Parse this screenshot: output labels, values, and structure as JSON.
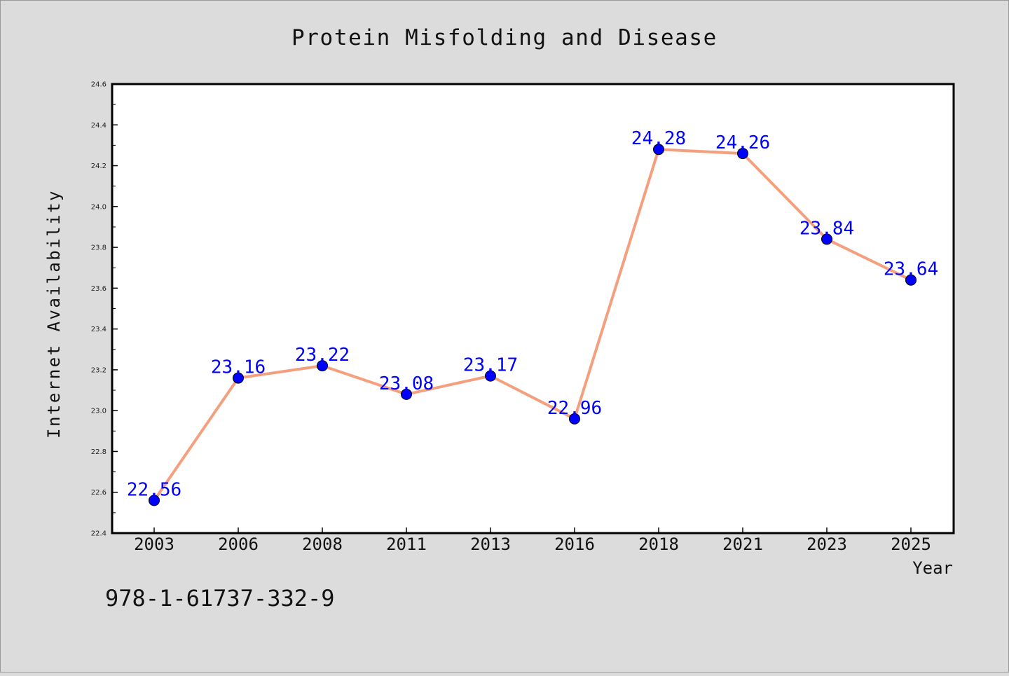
{
  "chart_data": {
    "type": "line",
    "title": "Protein Misfolding and Disease",
    "xlabel": "Year",
    "ylabel": "Internet Availability",
    "categories": [
      "2003",
      "2006",
      "2008",
      "2011",
      "2013",
      "2016",
      "2018",
      "2021",
      "2023",
      "2025"
    ],
    "series": [
      {
        "values": [
          22.56,
          23.16,
          23.22,
          23.08,
          23.17,
          22.96,
          24.28,
          24.26,
          23.84,
          23.64
        ],
        "labels": [
          "22.56",
          "23.16",
          "23.22",
          "23.08",
          "23.17",
          "22.96",
          "24.28",
          "24.26",
          "23.84",
          "23.64"
        ]
      }
    ],
    "ylim": [
      22.4,
      24.6
    ],
    "yticks": [
      "22.4",
      "22.6",
      "22.8",
      "23.0",
      "23.2",
      "23.4",
      "23.6",
      "23.8",
      "24.0",
      "24.2",
      "24.4",
      "24.6"
    ],
    "grid": false,
    "colors": {
      "line": "#f4a07f",
      "marker": "#0000ff",
      "label": "#0000ff",
      "background": "#dcdcdc",
      "plot_background": "#ffffff"
    }
  },
  "footer_text": "978-1-61737-332-9"
}
